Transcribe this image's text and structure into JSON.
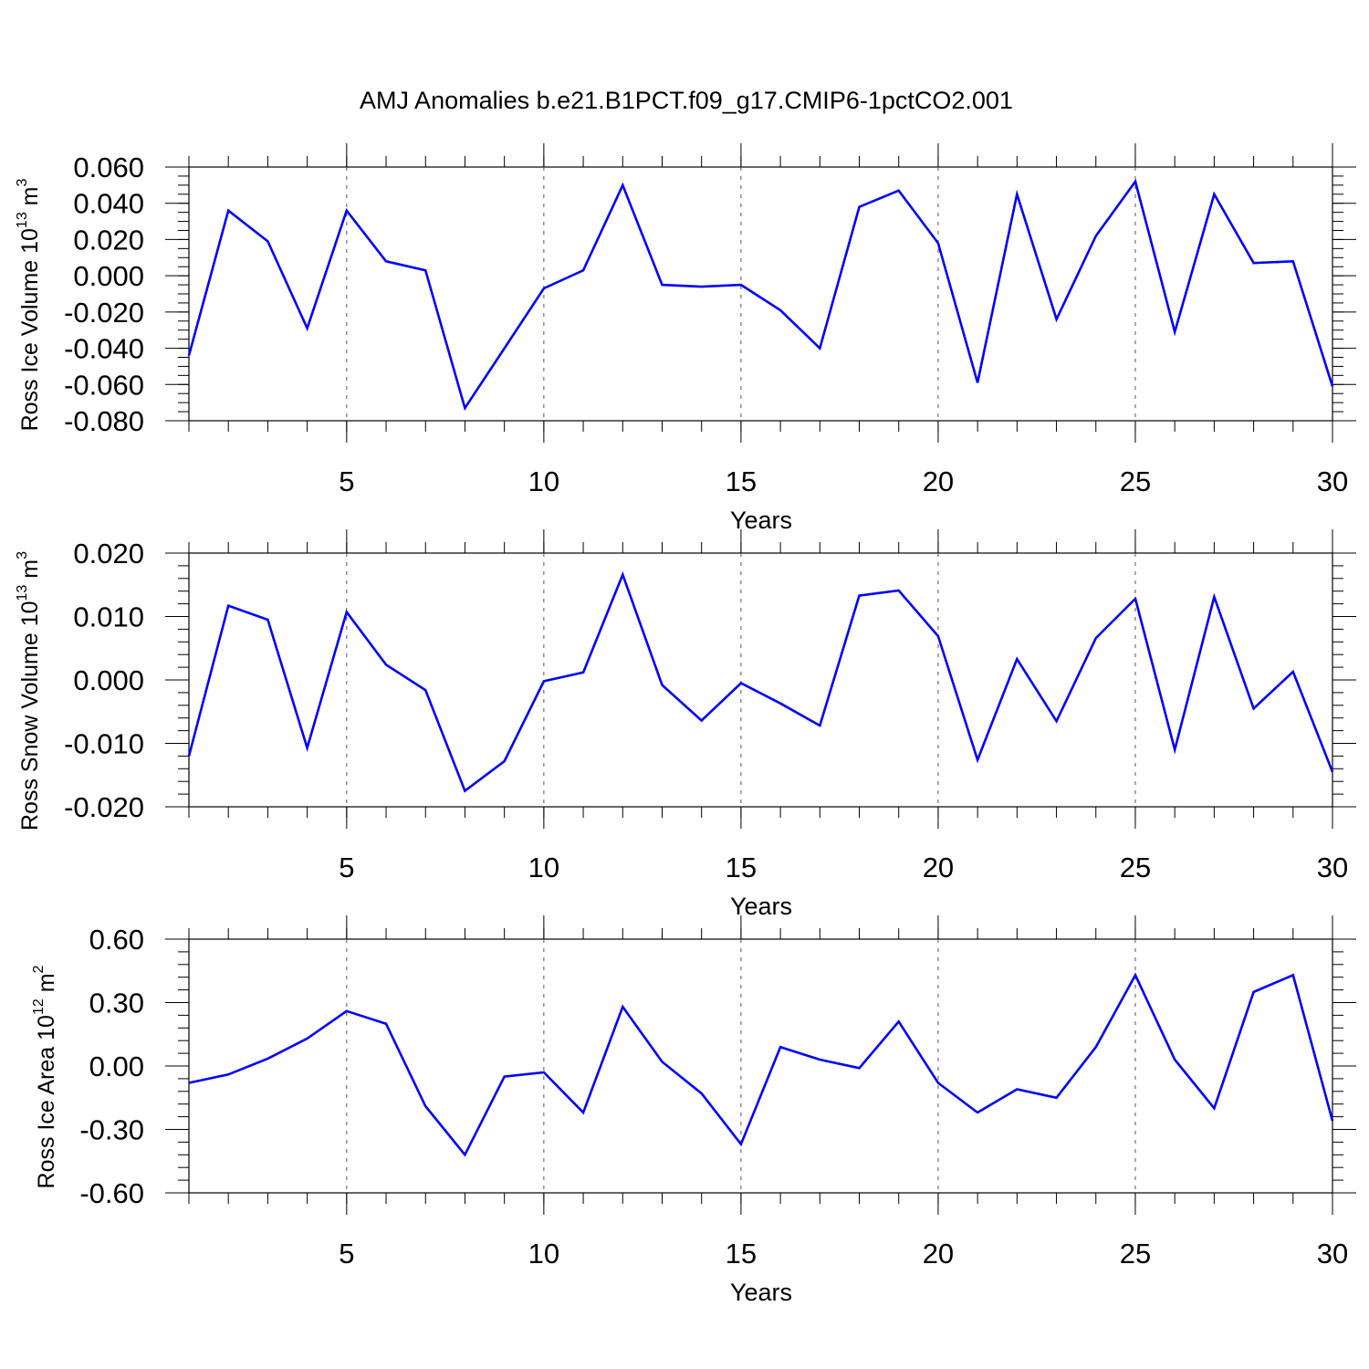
{
  "title": "AMJ Anomalies b.e21.B1PCT.f09_g17.CMIP6-1pctCO2.001",
  "colors": {
    "line": "#0000ff",
    "axis": "#000000",
    "grid": "#555555"
  },
  "chart_data": [
    {
      "type": "line",
      "ylabel_main": "Ross Ice Volume 10",
      "ylabel_exp": "13",
      "ylabel_unit": " m",
      "ylabel_unit_exp": "3",
      "xlabel": "Years",
      "xlim": [
        1,
        30
      ],
      "ylim": [
        -0.08,
        0.06
      ],
      "x_ticks": [
        5,
        10,
        15,
        20,
        25,
        30
      ],
      "x_tick_labels": [
        "5",
        "10",
        "15",
        "20",
        "25",
        "30"
      ],
      "y_ticks": [
        -0.08,
        -0.06,
        -0.04,
        -0.02,
        0.0,
        0.02,
        0.04,
        0.06
      ],
      "y_tick_labels": [
        "-0.080",
        "-0.060",
        "-0.040",
        "-0.020",
        "0.000",
        "0.020",
        "0.040",
        "0.060"
      ],
      "y_minor_step": 0.005,
      "x": [
        1,
        2,
        3,
        4,
        5,
        6,
        7,
        8,
        9,
        10,
        11,
        12,
        13,
        14,
        15,
        16,
        17,
        18,
        19,
        20,
        21,
        22,
        23,
        24,
        25,
        26,
        27,
        28,
        29,
        30
      ],
      "series": [
        {
          "name": "Ross Ice Volume",
          "values": [
            -0.044,
            0.036,
            0.019,
            -0.029,
            0.036,
            0.008,
            0.003,
            -0.073,
            -0.04,
            -0.007,
            0.003,
            0.05,
            -0.005,
            -0.006,
            -0.005,
            -0.019,
            -0.04,
            0.038,
            0.047,
            0.018,
            -0.059,
            0.045,
            -0.024,
            0.022,
            0.052,
            -0.031,
            0.045,
            0.007,
            0.008,
            -0.061
          ]
        }
      ]
    },
    {
      "type": "line",
      "ylabel_main": "Ross Snow Volume 10",
      "ylabel_exp": "13",
      "ylabel_unit": " m",
      "ylabel_unit_exp": "3",
      "xlabel": "Years",
      "xlim": [
        1,
        30
      ],
      "ylim": [
        -0.02,
        0.02
      ],
      "x_ticks": [
        5,
        10,
        15,
        20,
        25,
        30
      ],
      "x_tick_labels": [
        "5",
        "10",
        "15",
        "20",
        "25",
        "30"
      ],
      "y_ticks": [
        -0.02,
        -0.01,
        0.0,
        0.01,
        0.02
      ],
      "y_tick_labels": [
        "-0.020",
        "-0.010",
        "0.000",
        "0.010",
        "0.020"
      ],
      "y_minor_step": 0.002,
      "x": [
        1,
        2,
        3,
        4,
        5,
        6,
        7,
        8,
        9,
        10,
        11,
        12,
        13,
        14,
        15,
        16,
        17,
        18,
        19,
        20,
        21,
        22,
        23,
        24,
        25,
        26,
        27,
        28,
        29,
        30
      ],
      "series": [
        {
          "name": "Ross Snow Volume",
          "values": [
            -0.012,
            0.0117,
            0.0095,
            -0.0107,
            0.0107,
            0.0024,
            -0.0016,
            -0.0175,
            -0.0128,
            -0.0002,
            0.0012,
            0.0166,
            -0.0008,
            -0.0064,
            -0.0005,
            -0.0037,
            -0.0072,
            0.0133,
            0.0141,
            0.0069,
            -0.0126,
            0.0033,
            -0.0065,
            0.0066,
            0.0128,
            -0.011,
            0.0131,
            -0.0045,
            0.0013,
            -0.0145
          ]
        }
      ]
    },
    {
      "type": "line",
      "ylabel_main": "Ross Ice Area 10",
      "ylabel_exp": "12",
      "ylabel_unit": " m",
      "ylabel_unit_exp": "2",
      "xlabel": "Years",
      "xlim": [
        1,
        30
      ],
      "ylim": [
        -0.6,
        0.6
      ],
      "x_ticks": [
        5,
        10,
        15,
        20,
        25,
        30
      ],
      "x_tick_labels": [
        "5",
        "10",
        "15",
        "20",
        "25",
        "30"
      ],
      "y_ticks": [
        -0.6,
        -0.3,
        0.0,
        0.3,
        0.6
      ],
      "y_tick_labels": [
        "-0.60",
        "-0.30",
        "0.00",
        "0.30",
        "0.60"
      ],
      "y_minor_step": 0.06,
      "x": [
        1,
        2,
        3,
        4,
        5,
        6,
        7,
        8,
        9,
        10,
        11,
        12,
        13,
        14,
        15,
        16,
        17,
        18,
        19,
        20,
        21,
        22,
        23,
        24,
        25,
        26,
        27,
        28,
        29,
        30
      ],
      "series": [
        {
          "name": "Ross Ice Area",
          "values": [
            -0.08,
            -0.04,
            0.035,
            0.13,
            0.26,
            0.2,
            -0.19,
            -0.42,
            -0.05,
            -0.03,
            -0.22,
            0.28,
            0.02,
            -0.13,
            -0.37,
            0.09,
            0.03,
            -0.01,
            0.21,
            -0.08,
            -0.22,
            -0.11,
            -0.15,
            0.09,
            0.43,
            0.03,
            -0.2,
            0.35,
            0.43,
            -0.26
          ]
        }
      ]
    }
  ]
}
